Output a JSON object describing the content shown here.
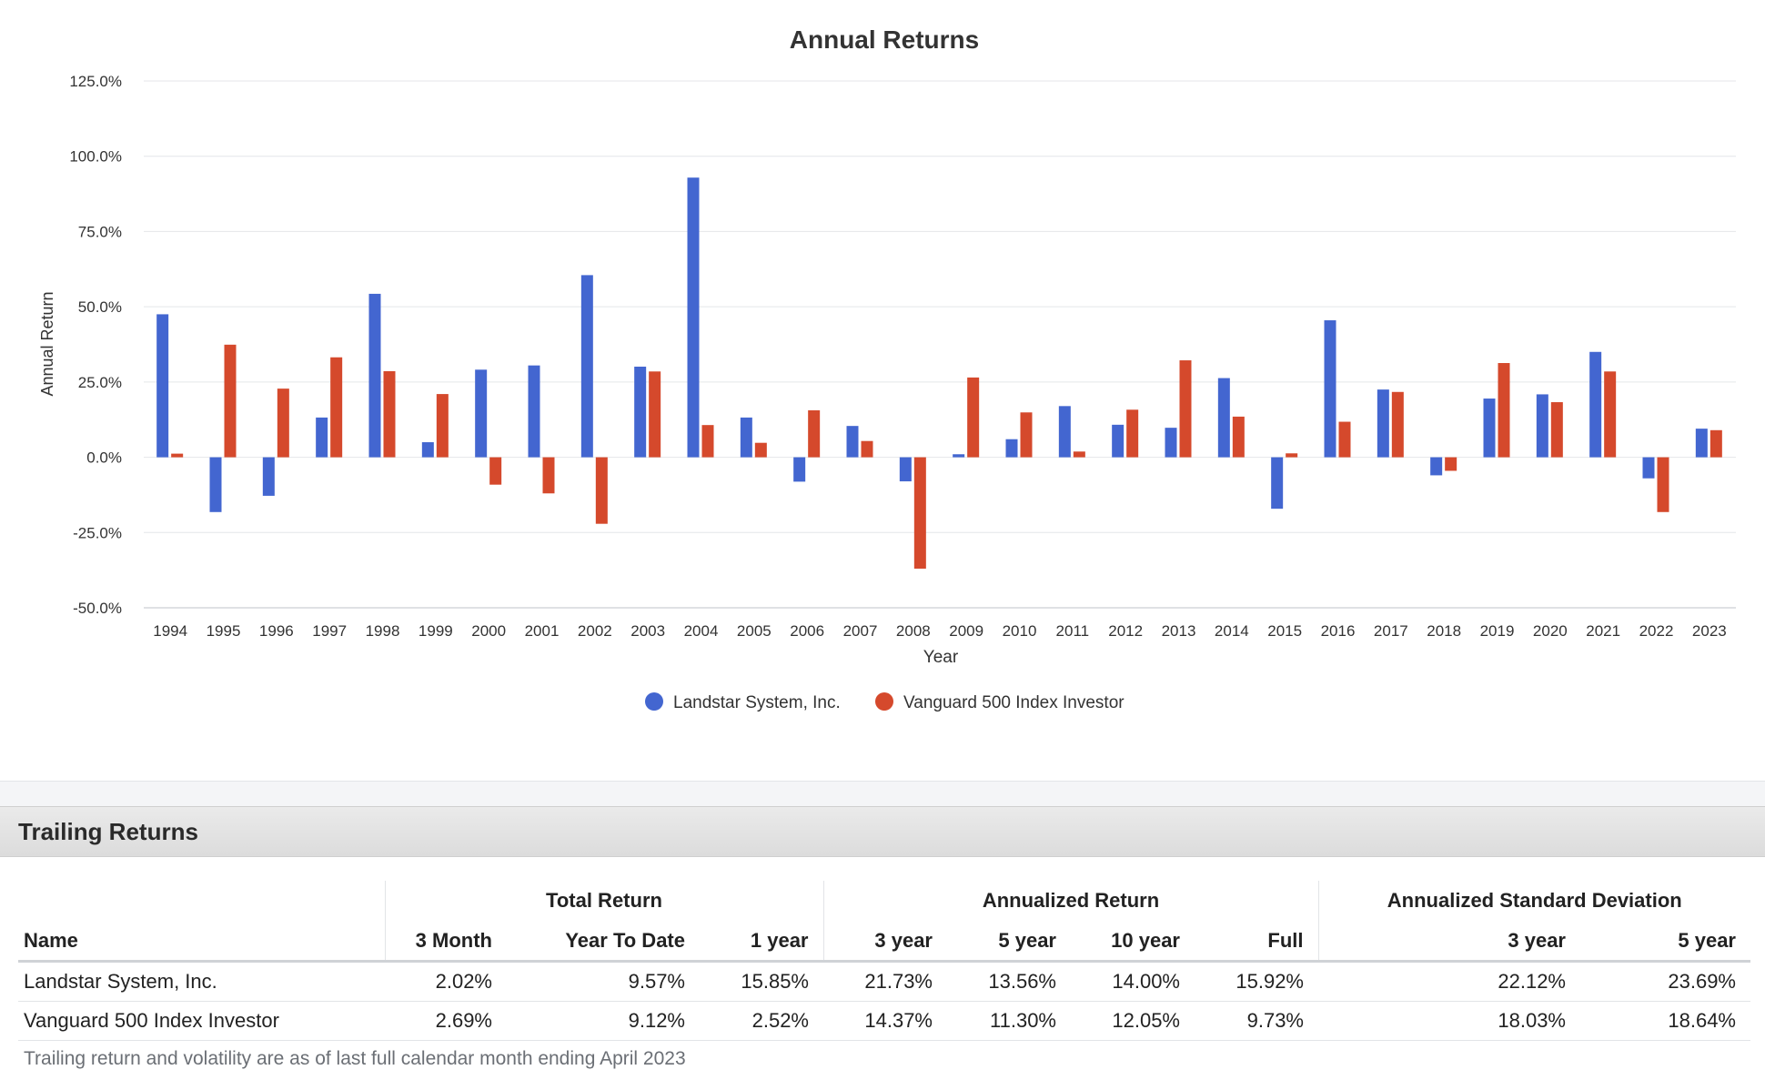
{
  "chart_data": {
    "type": "bar",
    "title": "Annual Returns",
    "xlabel": "Year",
    "ylabel": "Annual Return",
    "ylim": [
      -50,
      125
    ],
    "yticks": [
      -50,
      -25,
      0,
      25,
      50,
      75,
      100,
      125
    ],
    "ytick_labels": [
      "-50.0%",
      "-25.0%",
      "0.0%",
      "25.0%",
      "50.0%",
      "75.0%",
      "100.0%",
      "125.0%"
    ],
    "grid": true,
    "legend_position": "bottom",
    "categories": [
      "1994",
      "1995",
      "1996",
      "1997",
      "1998",
      "1999",
      "2000",
      "2001",
      "2002",
      "2003",
      "2004",
      "2005",
      "2006",
      "2007",
      "2008",
      "2009",
      "2010",
      "2011",
      "2012",
      "2013",
      "2014",
      "2015",
      "2016",
      "2017",
      "2018",
      "2019",
      "2020",
      "2021",
      "2022",
      "2023"
    ],
    "series": [
      {
        "name": "Landstar System, Inc.",
        "color": "#4366d0",
        "values": [
          47.5,
          -18.2,
          -12.8,
          13.2,
          54.3,
          5.0,
          29.1,
          30.5,
          60.5,
          30.1,
          92.9,
          13.2,
          -8.1,
          10.4,
          -8.0,
          1.0,
          6.0,
          17.0,
          10.8,
          9.8,
          26.3,
          -17.1,
          45.5,
          22.5,
          -6.0,
          19.5,
          20.9,
          35.0,
          -7.0,
          9.5
        ]
      },
      {
        "name": "Vanguard 500 Index Investor",
        "color": "#d5492c",
        "values": [
          1.2,
          37.4,
          22.8,
          33.2,
          28.6,
          21.0,
          -9.1,
          -12.0,
          -22.1,
          28.5,
          10.7,
          4.8,
          15.6,
          5.4,
          -37.0,
          26.5,
          14.9,
          1.9,
          15.8,
          32.2,
          13.5,
          1.3,
          11.8,
          21.7,
          -4.5,
          31.3,
          18.3,
          28.5,
          -18.2,
          9.0
        ]
      }
    ]
  },
  "trailing": {
    "section_title": "Trailing Returns",
    "groups": {
      "total_return": "Total Return",
      "annualized_return": "Annualized Return",
      "annualized_sd": "Annualized Standard Deviation"
    },
    "columns": [
      "Name",
      "3 Month",
      "Year To Date",
      "1 year",
      "3 year",
      "5 year",
      "10 year",
      "Full",
      "3 year",
      "5 year"
    ],
    "rows": [
      [
        "Landstar System, Inc.",
        "2.02%",
        "9.57%",
        "15.85%",
        "21.73%",
        "13.56%",
        "14.00%",
        "15.92%",
        "22.12%",
        "23.69%"
      ],
      [
        "Vanguard 500 Index Investor",
        "2.69%",
        "9.12%",
        "2.52%",
        "14.37%",
        "11.30%",
        "12.05%",
        "9.73%",
        "18.03%",
        "18.64%"
      ]
    ],
    "footnote": "Trailing return and volatility are as of last full calendar month ending April 2023"
  }
}
